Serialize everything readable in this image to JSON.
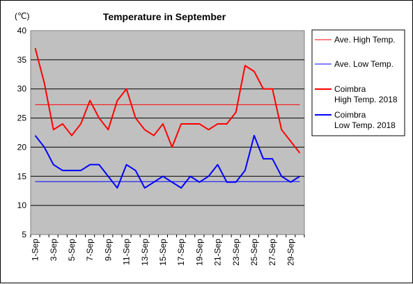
{
  "chart_data": {
    "type": "line",
    "title": "Temperature in September",
    "ylabel": "(℃)",
    "xlabel": "",
    "ylim": [
      5,
      40
    ],
    "yticks": [
      5,
      10,
      15,
      20,
      25,
      30,
      35,
      40
    ],
    "x": [
      "1-Sep",
      "2-Sep",
      "3-Sep",
      "4-Sep",
      "5-Sep",
      "6-Sep",
      "7-Sep",
      "8-Sep",
      "9-Sep",
      "10-Sep",
      "11-Sep",
      "12-Sep",
      "13-Sep",
      "14-Sep",
      "15-Sep",
      "16-Sep",
      "17-Sep",
      "18-Sep",
      "19-Sep",
      "20-Sep",
      "21-Sep",
      "22-Sep",
      "23-Sep",
      "24-Sep",
      "25-Sep",
      "26-Sep",
      "27-Sep",
      "28-Sep",
      "29-Sep",
      "30-Sep"
    ],
    "xtick_labels": [
      "1-Sep",
      "3-Sep",
      "5-Sep",
      "7-Sep",
      "9-Sep",
      "11-Sep",
      "13-Sep",
      "15-Sep",
      "17-Sep",
      "19-Sep",
      "21-Sep",
      "23-Sep",
      "25-Sep",
      "27-Sep",
      "29-Sep"
    ],
    "grid": true,
    "legend_position": "right",
    "plot_background": "#c0c0c0",
    "series": [
      {
        "name": "Ave. High Temp.",
        "color": "#ff0000",
        "stroke": "thin",
        "constant": 27.3
      },
      {
        "name": "Ave. Low Temp.",
        "color": "#0000ff",
        "stroke": "thin",
        "constant": 14.1
      },
      {
        "name": "Coimbra\nHigh Temp. 2018",
        "color": "#ff0000",
        "stroke": "thick",
        "values": [
          37,
          31,
          23,
          24,
          22,
          24,
          28,
          25,
          23,
          28,
          30,
          25,
          23,
          22,
          24,
          20,
          24,
          24,
          24,
          23,
          24,
          24,
          26,
          34,
          33,
          30,
          30,
          23,
          21,
          19
        ]
      },
      {
        "name": "Coimbra\nLow Temp. 2018",
        "color": "#0000ff",
        "stroke": "thick",
        "values": [
          22,
          20,
          17,
          16,
          16,
          16,
          17,
          17,
          15,
          13,
          17,
          16,
          13,
          14,
          15,
          14,
          13,
          15,
          14,
          15,
          17,
          14,
          14,
          16,
          22,
          18,
          18,
          15,
          14,
          15
        ]
      }
    ]
  }
}
